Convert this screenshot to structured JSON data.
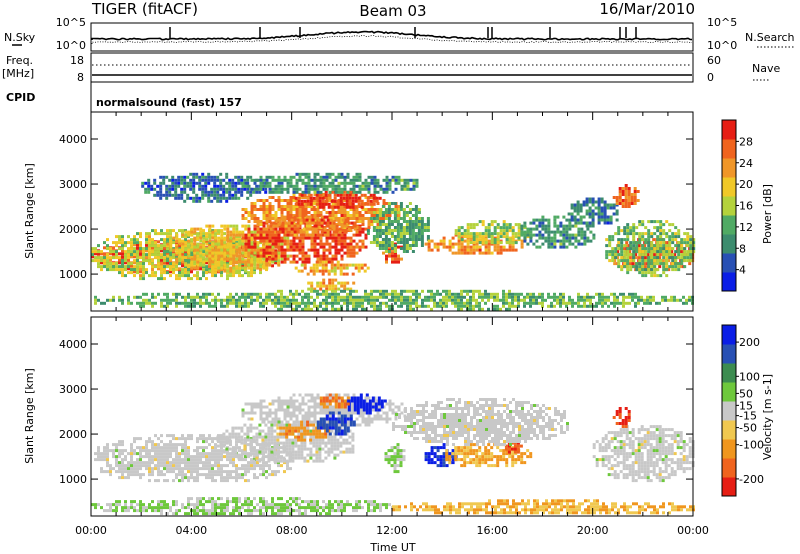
{
  "header": {
    "radar": "TIGER (fitACF)",
    "beam": "Beam 03",
    "date": "16/Mar/2010"
  },
  "params": {
    "nsky_label": "N.Sky",
    "nsearch_label": "N.Search",
    "freq_label_1": "Freq.",
    "freq_label_2": "[MHz]",
    "nave_label": "Nave",
    "cpid_label": "CPID",
    "cpid_value": "normalsound (fast) 157",
    "nsky_ticks": [
      "10^5",
      "10^0"
    ],
    "nsearch_ticks": [
      "10^5",
      "10^0"
    ],
    "freq_ticks": [
      "18",
      "8"
    ],
    "nave_ticks": [
      "60",
      "0"
    ]
  },
  "colors": {
    "power": [
      "#0a1ee6",
      "#2850b4",
      "#3c8c6e",
      "#50aa64",
      "#b4d23c",
      "#f0c828",
      "#f09628",
      "#f0641e",
      "#e61e14"
    ],
    "velocity": [
      "#e61e14",
      "#f0641e",
      "#f0961e",
      "#f0c850",
      "#c8c8c8",
      "#6ec83c",
      "#3c8c50",
      "#2850b4",
      "#0a1ee6"
    ]
  },
  "chart_data": [
    {
      "type": "heatmap",
      "ylabel": "Slant Range [km]",
      "xlabel": "",
      "x_ticks": [
        "00:00",
        "04:00",
        "08:00",
        "12:00",
        "16:00",
        "20:00",
        "00:00"
      ],
      "xlim": [
        0,
        24
      ],
      "ylim": [
        180,
        4600
      ],
      "y_ticks": [
        1000,
        2000,
        3000,
        4000
      ],
      "colorbar": {
        "label": "Power [dB]",
        "ticks": [
          4,
          8,
          12,
          16,
          20,
          24,
          28
        ],
        "range": [
          0,
          32
        ]
      },
      "blobs": [
        {
          "t0": 0.0,
          "t1": 7.5,
          "r0": 1050,
          "r1": 1750,
          "v": 28
        },
        {
          "t0": 0.0,
          "t1": 7.5,
          "r0": 900,
          "r1": 2000,
          "v": 17
        },
        {
          "t0": 3.0,
          "t1": 8.0,
          "r0": 1100,
          "r1": 2100,
          "v": 20
        },
        {
          "t0": 6.0,
          "t1": 11.0,
          "r0": 1300,
          "r1": 2300,
          "v": 28
        },
        {
          "t0": 6.0,
          "t1": 12.3,
          "r0": 2000,
          "r1": 2800,
          "v": 24
        },
        {
          "t0": 8.0,
          "t1": 11.5,
          "r0": 2500,
          "r1": 2850,
          "v": 29
        },
        {
          "t0": 7.0,
          "t1": 10.5,
          "r0": 1900,
          "r1": 2300,
          "v": 25
        },
        {
          "t0": 8.0,
          "t1": 11.0,
          "r0": 1000,
          "r1": 1300,
          "v": 22
        },
        {
          "t0": 8.5,
          "t1": 10.5,
          "r0": 650,
          "r1": 900,
          "v": 21
        },
        {
          "t0": 11.6,
          "t1": 12.4,
          "r0": 1250,
          "r1": 1700,
          "v": 27
        },
        {
          "t0": 11.0,
          "t1": 13.5,
          "r0": 1500,
          "r1": 2600,
          "v": 12
        },
        {
          "t0": 13.3,
          "t1": 17.2,
          "r0": 1450,
          "r1": 1900,
          "v": 24
        },
        {
          "t0": 14.5,
          "t1": 17.5,
          "r0": 1700,
          "r1": 2200,
          "v": 16
        },
        {
          "t0": 17.0,
          "t1": 20.0,
          "r0": 1600,
          "r1": 2300,
          "v": 10
        },
        {
          "t0": 19.0,
          "t1": 21.0,
          "r0": 2100,
          "r1": 2700,
          "v": 8
        },
        {
          "t0": 20.7,
          "t1": 24.0,
          "r0": 1100,
          "r1": 1800,
          "v": 27
        },
        {
          "t0": 20.5,
          "t1": 24.0,
          "r0": 1000,
          "r1": 2200,
          "v": 14
        },
        {
          "t0": 20.8,
          "t1": 21.8,
          "r0": 2500,
          "r1": 3000,
          "v": 26
        },
        {
          "t0": 0.0,
          "t1": 24.0,
          "r0": 250,
          "r1": 650,
          "v": 13
        },
        {
          "t0": 2.0,
          "t1": 7.0,
          "r0": 2650,
          "r1": 3250,
          "v": 7
        },
        {
          "t0": 6.0,
          "t1": 13.0,
          "r0": 2800,
          "r1": 3250,
          "v": 10
        }
      ]
    },
    {
      "type": "heatmap",
      "ylabel": "Slant Range [km]",
      "xlabel": "Time UT",
      "x_ticks": [
        "00:00",
        "04:00",
        "08:00",
        "12:00",
        "16:00",
        "20:00",
        "00:00"
      ],
      "xlim": [
        0,
        24
      ],
      "ylim": [
        180,
        4600
      ],
      "y_ticks": [
        1000,
        2000,
        3000,
        4000
      ],
      "colorbar": {
        "label": "Velocity [m s-1]",
        "ticks": [
          200,
          100,
          50,
          15,
          -15,
          -50,
          -100,
          -200
        ],
        "range": [
          -250,
          250
        ]
      },
      "blobs": [
        {
          "t0": 0.0,
          "t1": 8.0,
          "r0": 950,
          "r1": 2000,
          "v": 0
        },
        {
          "t0": 5.0,
          "t1": 10.5,
          "r0": 1400,
          "r1": 2300,
          "v": 0
        },
        {
          "t0": 6.0,
          "t1": 12.5,
          "r0": 2200,
          "r1": 2900,
          "v": 0
        },
        {
          "t0": 7.5,
          "t1": 9.5,
          "r0": 1900,
          "r1": 2300,
          "v": -120
        },
        {
          "t0": 9.0,
          "t1": 10.5,
          "r0": 2000,
          "r1": 2500,
          "v": 180
        },
        {
          "t0": 10.0,
          "t1": 11.7,
          "r0": 2500,
          "r1": 2900,
          "v": 220
        },
        {
          "t0": 9.0,
          "t1": 10.3,
          "r0": 2600,
          "r1": 2900,
          "v": -140
        },
        {
          "t0": 11.7,
          "t1": 12.5,
          "r0": 1200,
          "r1": 1800,
          "v": 40
        },
        {
          "t0": 13.3,
          "t1": 14.5,
          "r0": 1300,
          "r1": 1800,
          "v": 210
        },
        {
          "t0": 14.0,
          "t1": 17.5,
          "r0": 1300,
          "r1": 1800,
          "v": -90
        },
        {
          "t0": 16.5,
          "t1": 17.2,
          "r0": 1600,
          "r1": 1900,
          "v": -180
        },
        {
          "t0": 12.0,
          "t1": 19.0,
          "r0": 1800,
          "r1": 2800,
          "v": 0
        },
        {
          "t0": 20.0,
          "t1": 24.0,
          "r0": 1000,
          "r1": 2200,
          "v": 0
        },
        {
          "t0": 20.8,
          "t1": 21.5,
          "r0": 2200,
          "r1": 2600,
          "v": -200
        },
        {
          "t0": 0.0,
          "t1": 12.0,
          "r0": 250,
          "r1": 600,
          "v": 35
        },
        {
          "t0": 12.0,
          "t1": 24.0,
          "r0": 230,
          "r1": 550,
          "v": -80
        }
      ]
    }
  ]
}
